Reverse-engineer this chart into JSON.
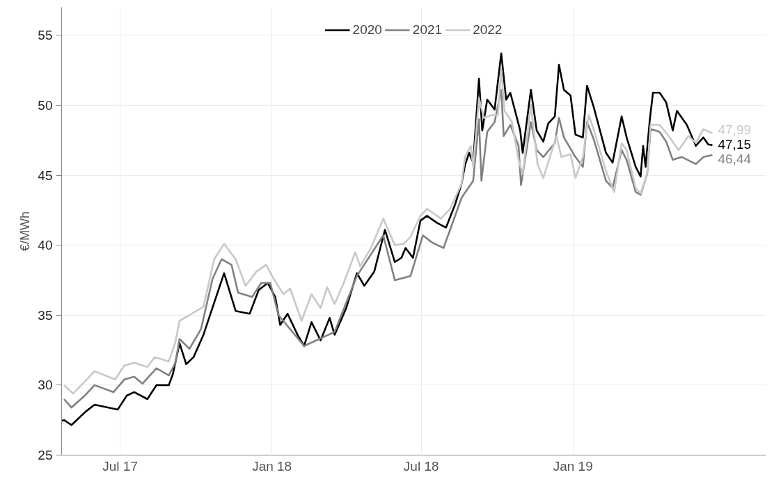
{
  "chart_data": {
    "type": "line",
    "ylabel": "€/MWh",
    "xlim": [
      "2017-04-21",
      "2019-08-23"
    ],
    "ylim": [
      25,
      57
    ],
    "xticks": [
      {
        "value": "2017-07-01",
        "label": "Jul 17"
      },
      {
        "value": "2018-01-01",
        "label": "Jan 18"
      },
      {
        "value": "2018-07-01",
        "label": "Jul 18"
      },
      {
        "value": "2019-01-01",
        "label": "Jan 19"
      }
    ],
    "yticks": [
      25,
      30,
      35,
      40,
      45,
      50,
      55
    ],
    "grid": true,
    "legend": "top",
    "marker": "none",
    "line_style": "solid",
    "series": [
      {
        "name": "2020",
        "color": "#000000",
        "x": [
          "2017-04-21",
          "2017-04-24",
          "2017-05-03",
          "2017-05-20",
          "2017-05-31",
          "2017-06-28",
          "2017-07-09",
          "2017-07-18",
          "2017-08-03",
          "2017-08-14",
          "2017-08-29",
          "2017-09-03",
          "2017-09-11",
          "2017-09-19",
          "2017-09-28",
          "2017-10-10",
          "2017-10-27",
          "2017-11-04",
          "2017-11-18",
          "2017-12-05",
          "2017-12-16",
          "2017-12-27",
          "2018-01-05",
          "2018-01-11",
          "2018-01-20",
          "2018-02-01",
          "2018-02-09",
          "2018-02-18",
          "2018-03-01",
          "2018-03-12",
          "2018-03-18",
          "2018-04-01",
          "2018-04-14",
          "2018-04-23",
          "2018-05-05",
          "2018-05-18",
          "2018-05-30",
          "2018-06-07",
          "2018-06-12",
          "2018-06-21",
          "2018-06-30",
          "2018-07-08",
          "2018-07-20",
          "2018-07-31",
          "2018-08-11",
          "2018-08-19",
          "2018-08-23",
          "2018-08-28",
          "2018-09-02",
          "2018-09-09",
          "2018-09-13",
          "2018-09-19",
          "2018-09-28",
          "2018-10-06",
          "2018-10-12",
          "2018-10-17",
          "2018-10-29",
          "2018-11-01",
          "2018-11-11",
          "2018-11-18",
          "2018-11-26",
          "2018-12-02",
          "2018-12-10",
          "2018-12-15",
          "2018-12-21",
          "2018-12-29",
          "2019-01-04",
          "2019-01-13",
          "2019-01-18",
          "2019-01-26",
          "2019-02-10",
          "2019-02-18",
          "2019-03-01",
          "2019-03-07",
          "2019-03-18",
          "2019-03-24",
          "2019-03-27",
          "2019-03-30",
          "2019-04-04",
          "2019-04-08",
          "2019-04-16",
          "2019-04-24",
          "2019-05-02",
          "2019-05-07",
          "2019-05-19",
          "2019-05-30",
          "2019-06-08",
          "2019-06-14",
          "2019-06-19"
        ],
        "values": [
          27.45,
          27.5,
          27.15,
          28.1,
          28.6,
          28.25,
          29.25,
          29.5,
          29.0,
          30.0,
          30.0,
          30.8,
          33.0,
          31.5,
          32.0,
          33.6,
          36.6,
          38.0,
          35.3,
          35.1,
          36.8,
          37.3,
          36.3,
          34.3,
          35.1,
          33.6,
          32.8,
          34.5,
          33.2,
          34.8,
          33.6,
          35.5,
          38.0,
          37.1,
          38.1,
          41.1,
          38.8,
          39.1,
          39.8,
          39.1,
          41.75,
          42.1,
          41.6,
          41.25,
          42.9,
          44.4,
          45.7,
          46.6,
          45.9,
          51.9,
          48.2,
          50.4,
          49.7,
          53.7,
          50.4,
          50.9,
          48.2,
          46.6,
          51.1,
          48.2,
          47.4,
          48.7,
          49.2,
          52.9,
          51.1,
          50.7,
          47.9,
          47.7,
          51.4,
          49.9,
          46.6,
          45.9,
          49.2,
          47.7,
          45.6,
          44.9,
          47.1,
          45.6,
          48.9,
          50.9,
          50.9,
          50.2,
          48.2,
          49.6,
          48.6,
          47.1,
          47.7,
          47.2,
          47.15
        ]
      },
      {
        "name": "2021",
        "color": "#808080",
        "x": [
          "2017-04-24",
          "2017-05-03",
          "2017-05-20",
          "2017-05-31",
          "2017-06-23",
          "2017-07-06",
          "2017-07-18",
          "2017-07-28",
          "2017-08-14",
          "2017-08-29",
          "2017-09-06",
          "2017-09-11",
          "2017-09-23",
          "2017-10-07",
          "2017-10-21",
          "2017-11-01",
          "2017-11-13",
          "2017-11-21",
          "2017-12-08",
          "2017-12-19",
          "2017-12-30",
          "2018-01-09",
          "2018-02-09",
          "2018-03-18",
          "2018-04-14",
          "2018-05-16",
          "2018-05-30",
          "2018-06-18",
          "2018-07-03",
          "2018-07-14",
          "2018-07-28",
          "2018-08-05",
          "2018-08-19",
          "2018-09-02",
          "2018-09-09",
          "2018-09-12",
          "2018-09-19",
          "2018-09-28",
          "2018-10-06",
          "2018-10-09",
          "2018-10-17",
          "2018-10-27",
          "2018-10-30",
          "2018-11-11",
          "2018-11-18",
          "2018-11-26",
          "2018-12-10",
          "2018-12-15",
          "2018-12-21",
          "2019-01-04",
          "2019-01-13",
          "2019-01-18",
          "2019-01-26",
          "2019-02-10",
          "2019-02-18",
          "2019-03-01",
          "2019-03-07",
          "2019-03-18",
          "2019-03-24",
          "2019-04-01",
          "2019-04-05",
          "2019-04-16",
          "2019-04-24",
          "2019-05-02",
          "2019-05-13",
          "2019-05-30",
          "2019-06-08",
          "2019-06-19"
        ],
        "values": [
          29.0,
          28.4,
          29.3,
          30.0,
          29.5,
          30.4,
          30.6,
          30.1,
          31.2,
          30.7,
          31.6,
          33.3,
          32.6,
          34.0,
          37.6,
          39.0,
          38.6,
          36.6,
          36.3,
          37.3,
          37.3,
          35.0,
          32.8,
          33.8,
          37.8,
          40.7,
          37.5,
          37.8,
          40.7,
          40.2,
          39.8,
          41.1,
          43.4,
          44.6,
          49.0,
          44.6,
          48.1,
          48.8,
          51.1,
          47.8,
          48.6,
          47.1,
          44.3,
          48.8,
          46.8,
          46.3,
          47.3,
          49.1,
          47.7,
          46.3,
          45.6,
          48.8,
          47.6,
          44.6,
          44.1,
          46.8,
          46.1,
          43.8,
          43.6,
          45.1,
          48.3,
          48.1,
          47.4,
          46.1,
          46.3,
          45.8,
          46.3,
          46.44
        ]
      },
      {
        "name": "2022",
        "color": "#c8c8c8",
        "x": [
          "2017-04-24",
          "2017-05-05",
          "2017-05-20",
          "2017-05-31",
          "2017-06-25",
          "2017-07-06",
          "2017-07-18",
          "2017-08-03",
          "2017-08-12",
          "2017-08-29",
          "2017-09-06",
          "2017-09-11",
          "2017-09-23",
          "2017-10-10",
          "2017-10-23",
          "2017-11-04",
          "2017-11-18",
          "2017-11-30",
          "2017-12-13",
          "2017-12-25",
          "2018-01-03",
          "2018-01-15",
          "2018-01-23",
          "2018-02-06",
          "2018-02-18",
          "2018-03-01",
          "2018-03-09",
          "2018-03-18",
          "2018-03-29",
          "2018-04-12",
          "2018-04-18",
          "2018-05-01",
          "2018-05-16",
          "2018-05-30",
          "2018-06-10",
          "2018-06-18",
          "2018-06-30",
          "2018-07-08",
          "2018-07-25",
          "2018-08-05",
          "2018-08-19",
          "2018-08-23",
          "2018-08-30",
          "2018-09-02",
          "2018-09-09",
          "2018-09-15",
          "2018-09-24",
          "2018-10-02",
          "2018-10-06",
          "2018-10-10",
          "2018-10-19",
          "2018-10-27",
          "2018-11-01",
          "2018-11-11",
          "2018-11-19",
          "2018-11-26",
          "2018-12-04",
          "2018-12-12",
          "2018-12-18",
          "2018-12-29",
          "2019-01-04",
          "2019-01-13",
          "2019-01-20",
          "2019-01-26",
          "2019-02-10",
          "2019-02-20",
          "2019-03-01",
          "2019-03-07",
          "2019-03-18",
          "2019-03-24",
          "2019-04-01",
          "2019-04-05",
          "2019-04-16",
          "2019-04-27",
          "2019-05-09",
          "2019-05-21",
          "2019-05-30",
          "2019-06-08",
          "2019-06-19"
        ],
        "values": [
          30.0,
          29.4,
          30.3,
          31.0,
          30.4,
          31.4,
          31.6,
          31.3,
          32.0,
          31.7,
          33.1,
          34.6,
          35.0,
          35.6,
          39.0,
          40.1,
          39.0,
          37.1,
          38.1,
          38.6,
          37.6,
          36.5,
          36.9,
          34.6,
          36.5,
          35.5,
          37.0,
          35.8,
          37.3,
          39.5,
          38.5,
          39.8,
          41.9,
          40.0,
          40.1,
          40.6,
          42.1,
          42.6,
          41.9,
          42.6,
          44.4,
          46.3,
          47.1,
          45.6,
          50.5,
          49.1,
          49.3,
          49.3,
          52.6,
          49.6,
          48.8,
          46.1,
          45.1,
          50.0,
          45.8,
          44.8,
          46.3,
          47.8,
          46.3,
          46.5,
          44.8,
          46.3,
          49.3,
          48.3,
          45.3,
          43.8,
          47.3,
          46.8,
          44.1,
          43.7,
          45.1,
          48.6,
          48.6,
          47.8,
          46.8,
          47.8,
          47.3,
          48.3,
          47.99
        ]
      }
    ],
    "annotations": [
      {
        "text": "47,99",
        "x": "2019-06-19",
        "y": 47.99
      },
      {
        "text": "47,15",
        "x": "2019-06-19",
        "y": 47.15
      },
      {
        "text": "46,44",
        "x": "2019-06-19",
        "y": 46.44
      }
    ]
  }
}
